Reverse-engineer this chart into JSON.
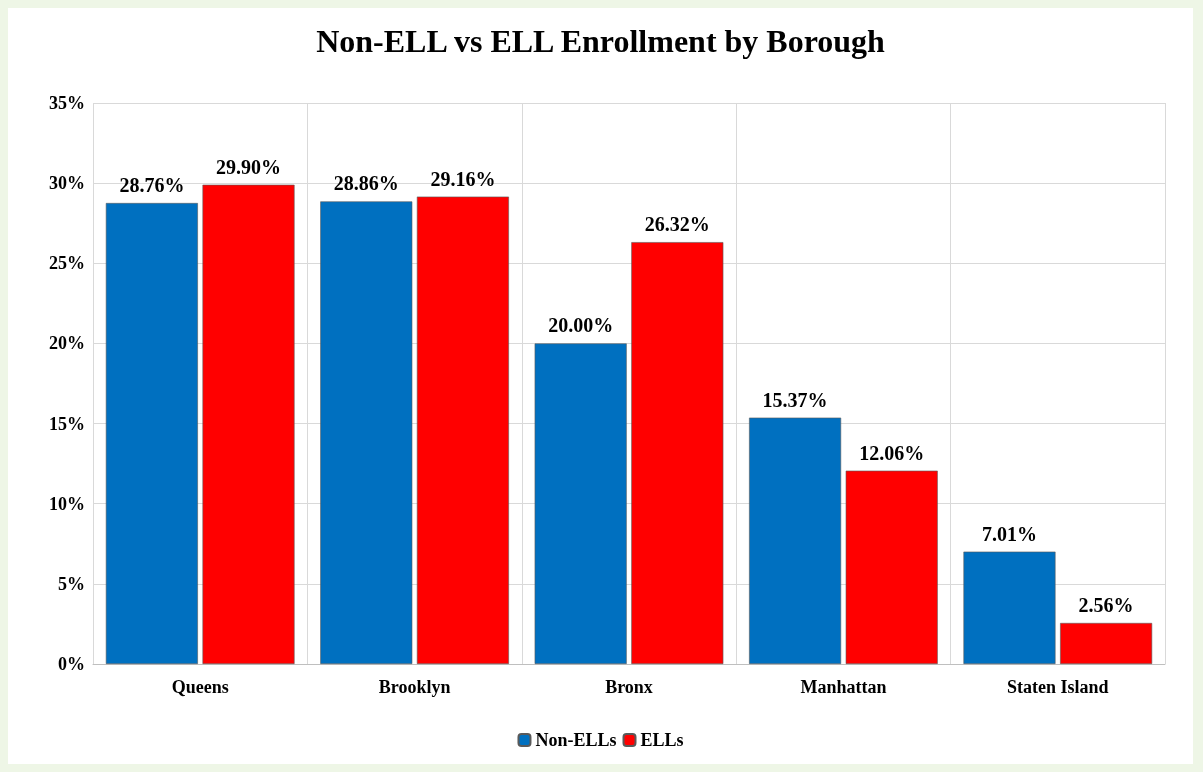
{
  "chart_data": {
    "type": "bar",
    "title": "Non-ELL vs ELL Enrollment by Borough",
    "categories": [
      "Queens",
      "Brooklyn",
      "Bronx",
      "Manhattan",
      "Staten Island"
    ],
    "series": [
      {
        "name": "Non-ELLs",
        "color": "#0070c0",
        "values": [
          28.76,
          28.86,
          20.0,
          15.37,
          7.01
        ],
        "value_labels": [
          "28.76%",
          "28.86%",
          "20.00%",
          "15.37%",
          "7.01%"
        ]
      },
      {
        "name": "ELLs",
        "color": "#ff0000",
        "values": [
          29.9,
          29.16,
          26.32,
          12.06,
          2.56
        ],
        "value_labels": [
          "29.90%",
          "29.16%",
          "26.32%",
          "12.06%",
          "2.56%"
        ]
      }
    ],
    "ylim": [
      0,
      35
    ],
    "yticks": [
      {
        "value": 0,
        "label": "0%"
      },
      {
        "value": 5,
        "label": "5%"
      },
      {
        "value": 10,
        "label": "10%"
      },
      {
        "value": 15,
        "label": "15%"
      },
      {
        "value": 20,
        "label": "20%"
      },
      {
        "value": 25,
        "label": "25%"
      },
      {
        "value": 30,
        "label": "30%"
      },
      {
        "value": 35,
        "label": "35%"
      }
    ],
    "grid": true,
    "legend": "bottom"
  }
}
